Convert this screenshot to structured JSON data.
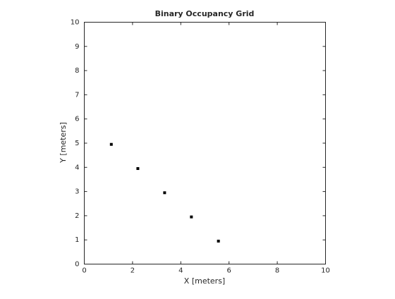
{
  "chart_data": {
    "type": "scatter",
    "title": "Binary Occupancy Grid",
    "x_label": "X [meters]",
    "y_label": "Y [meters]",
    "x": [
      1.12,
      2.22,
      3.33,
      4.44,
      5.56
    ],
    "values": [
      4.95,
      3.95,
      2.95,
      1.95,
      0.95
    ],
    "color": "#000000",
    "marker": "square",
    "xlim": [
      0,
      10
    ],
    "ylim": [
      0,
      10
    ],
    "xticks": [
      0,
      2,
      4,
      6,
      8,
      10
    ],
    "yticks": [
      0,
      1,
      2,
      3,
      4,
      5,
      6,
      7,
      8,
      9,
      10
    ],
    "grid": false
  }
}
